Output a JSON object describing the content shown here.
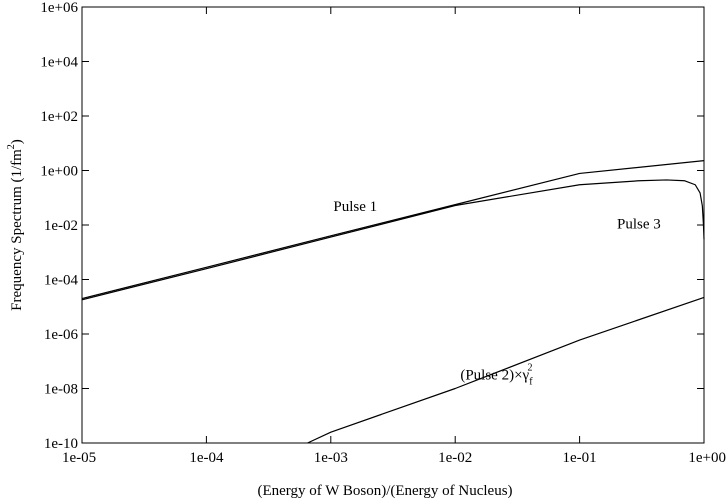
{
  "chart_data": {
    "type": "line",
    "title": "",
    "xlabel": "(Energy of W Boson)/(Energy of Nucleus)",
    "ylabel": {
      "main": "Frequency Spectrum (1/fm",
      "sup": "2",
      "end": ")"
    },
    "x_scale": "log",
    "y_scale": "log",
    "xlim": [
      1e-05,
      1
    ],
    "ylim": [
      1e-10,
      1000000.0
    ],
    "x_ticks": [
      {
        "value": 1e-05,
        "label": "1e-05"
      },
      {
        "value": 0.0001,
        "label": "1e-04"
      },
      {
        "value": 0.001,
        "label": "1e-03"
      },
      {
        "value": 0.01,
        "label": "1e-02"
      },
      {
        "value": 0.1,
        "label": "1e-01"
      },
      {
        "value": 1,
        "label": "1e+00"
      }
    ],
    "y_ticks": [
      {
        "value": 1000000.0,
        "label": "1e+06"
      },
      {
        "value": 10000.0,
        "label": "1e+04"
      },
      {
        "value": 100.0,
        "label": "1e+02"
      },
      {
        "value": 1,
        "label": "1e+00"
      },
      {
        "value": 0.01,
        "label": "1e-02"
      },
      {
        "value": 0.0001,
        "label": "1e-04"
      },
      {
        "value": 1e-06,
        "label": "1e-06"
      },
      {
        "value": 1e-08,
        "label": "1e-08"
      },
      {
        "value": 1e-10,
        "label": "1e-10"
      }
    ],
    "grid": false,
    "legend": "none",
    "series": [
      {
        "x": [
          1e-05,
          0.0001,
          0.001,
          0.01,
          0.1,
          1
        ],
        "y": [
          2e-05,
          0.00028,
          0.004,
          0.056,
          0.78,
          2.3
        ]
      },
      {
        "x": [
          1e-05,
          0.0001,
          0.001,
          0.01,
          0.1,
          0.3,
          0.5,
          0.7,
          0.85,
          0.93,
          0.97,
          0.99,
          1
        ],
        "y": [
          1.8e-05,
          0.00025,
          0.0036,
          0.052,
          0.3,
          0.42,
          0.45,
          0.42,
          0.3,
          0.15,
          0.05,
          0.01,
          0.003
        ]
      },
      {
        "x": [
          0.00065,
          0.001,
          0.01,
          0.1,
          1
        ],
        "y": [
          1e-10,
          2.5e-10,
          1e-08,
          6e-07,
          2.2e-05
        ]
      }
    ],
    "annotations": [
      {
        "id": "pulse1",
        "text": "Pulse 1",
        "x": 0.00105,
        "y": 0.032
      },
      {
        "id": "pulse3",
        "text": "Pulse 3",
        "x": 0.2,
        "y": 0.0075
      },
      {
        "id": "pulse2",
        "main": "(Pulse 2)×γ",
        "sub": "f",
        "sup": "2",
        "x": 0.011,
        "y": 2.1e-08
      }
    ]
  }
}
